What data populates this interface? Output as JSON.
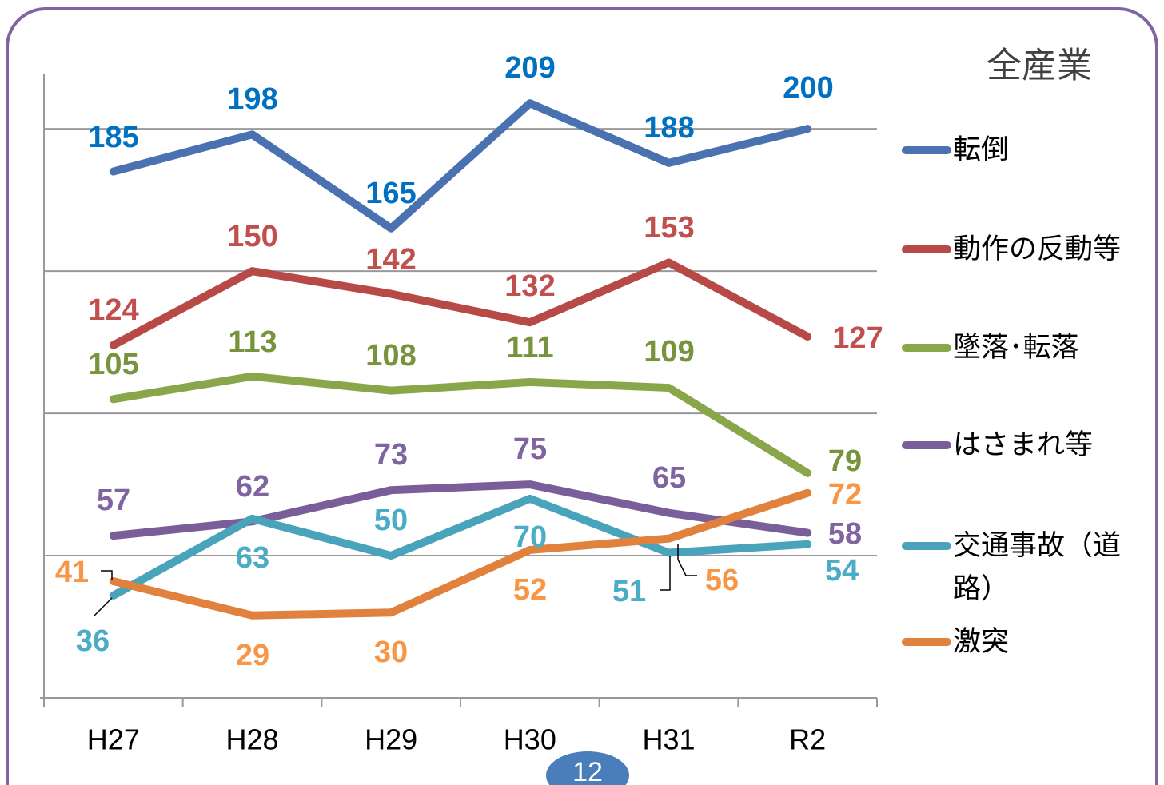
{
  "chart_data": {
    "type": "line",
    "title": "全産業",
    "categories": [
      "H27",
      "H28",
      "H29",
      "H30",
      "H31",
      "R2"
    ],
    "ylim": [
      0,
      220
    ],
    "yticks": [
      50,
      100,
      150,
      200
    ],
    "grid": true,
    "series": [
      {
        "name": "転倒",
        "color": "#4a72b0",
        "label_color": "#0070c0",
        "values": [
          185,
          198,
          165,
          209,
          188,
          200
        ]
      },
      {
        "name": "動作の反動等",
        "color": "#b74a47",
        "label_color": "#c0504d",
        "values": [
          124,
          150,
          142,
          132,
          153,
          127
        ]
      },
      {
        "name": "墜落･転落",
        "color": "#8aa64a",
        "label_color": "#77933c",
        "values": [
          105,
          113,
          108,
          111,
          109,
          79
        ]
      },
      {
        "name": "はさまれ等",
        "color": "#7a5e9a",
        "label_color": "#8064a2",
        "values": [
          57,
          62,
          73,
          75,
          65,
          58
        ]
      },
      {
        "name": "交通事故（道路）",
        "color": "#48a3bb",
        "label_color": "#4bacc6",
        "values": [
          36,
          63,
          50,
          70,
          51,
          54
        ]
      },
      {
        "name": "激突",
        "color": "#e0823e",
        "label_color": "#f79646",
        "values": [
          41,
          29,
          30,
          52,
          56,
          72
        ]
      }
    ]
  },
  "page_number": "12"
}
